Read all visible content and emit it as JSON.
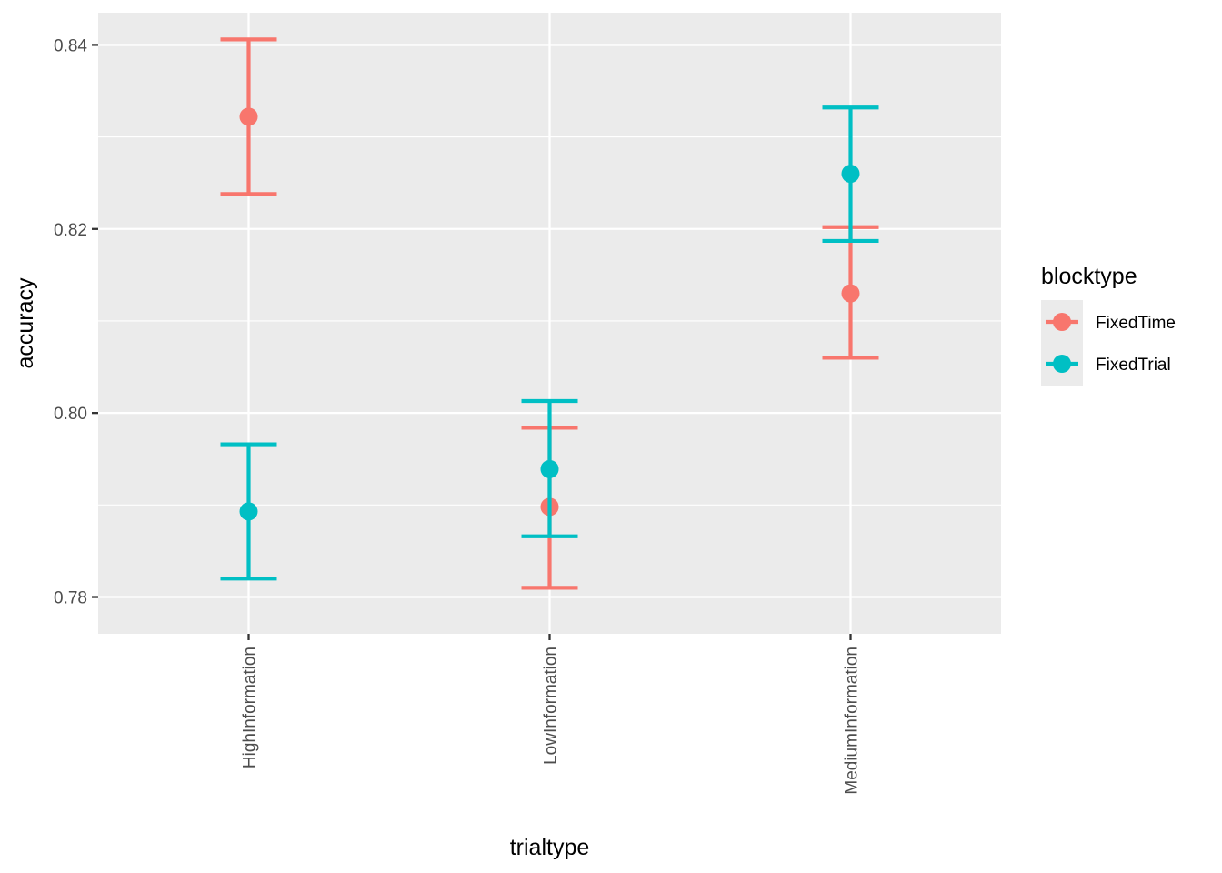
{
  "chart_data": {
    "type": "errorbar",
    "xlabel": "trialtype",
    "ylabel": "accuracy",
    "categories": [
      "HighInformation",
      "LowInformation",
      "MediumInformation"
    ],
    "ylim": [
      0.776,
      0.8435
    ],
    "yticks": [
      0.78,
      0.8,
      0.82,
      0.84
    ],
    "ytick_labels": [
      "0.78",
      "0.80",
      "0.82",
      "0.84"
    ],
    "grid": true,
    "legend": {
      "title": "blocktype",
      "placement": "right"
    },
    "series": [
      {
        "name": "FixedTime",
        "color": "#F8766D",
        "values": [
          0.8322,
          0.7898,
          0.813
        ],
        "lower": [
          0.8238,
          0.781,
          0.806
        ],
        "upper": [
          0.8406,
          0.7984,
          0.8202
        ]
      },
      {
        "name": "FixedTrial",
        "color": "#00BFC4",
        "values": [
          0.7893,
          0.7939,
          0.826
        ],
        "lower": [
          0.782,
          0.7866,
          0.8187
        ],
        "upper": [
          0.7966,
          0.8013,
          0.8332
        ]
      }
    ]
  }
}
